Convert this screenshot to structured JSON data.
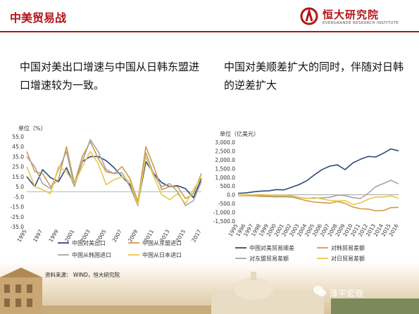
{
  "header": {
    "title": "中美贸易战"
  },
  "logo": {
    "cn": "恒大研究院",
    "en": "EVERGRANDE RESEARCH INSTITUTE"
  },
  "left_text": "中国对美出口增速与中国从日韩东盟进口增速较为一致。",
  "right_text": "中国对美顺差扩大的同时，伴随对日韩的逆差扩大",
  "source": "资料来源：  WIND，恒大研究院",
  "watermark": "泽平宏观",
  "colors": {
    "brand": "#b0151b"
  },
  "chart_data": [
    {
      "type": "line",
      "unit": "单位（%）",
      "x": [
        "1995",
        "1996",
        "1997",
        "1998",
        "1999",
        "2000",
        "2001",
        "2002",
        "2003",
        "2004",
        "2005",
        "2006",
        "2007",
        "2008",
        "2009",
        "2010",
        "2011",
        "2012",
        "2013",
        "2014",
        "2015",
        "2016",
        "2017"
      ],
      "x_tick_labels": [
        "1995",
        "1997",
        "1999",
        "2001",
        "2003",
        "2005",
        "2007",
        "2009",
        "2011",
        "2013",
        "2015",
        "2017"
      ],
      "ylim": [
        -35,
        55
      ],
      "y_ticks": [
        -35,
        -25,
        -15,
        -5,
        5,
        15,
        25,
        35,
        45,
        55
      ],
      "y_tick_labels": [
        "-35.0",
        "-25.0",
        "-15.0",
        "-5.0",
        "5.0",
        "15.0",
        "25.0",
        "35.0",
        "45.0",
        "55.0"
      ],
      "legend": "bottom",
      "series": [
        {
          "name": "中国对美出口",
          "color": "#2e4a7a",
          "values": [
            15,
            5,
            22,
            14,
            10,
            24,
            6,
            30,
            35,
            35,
            31,
            24,
            15,
            7,
            -12,
            30,
            18,
            9,
            5,
            6,
            3,
            -6,
            13
          ]
        },
        {
          "name": "中国从东盟进口",
          "color": "#d19a4a",
          "values": [
            40,
            20,
            18,
            5,
            12,
            45,
            8,
            35,
            50,
            33,
            20,
            18,
            25,
            13,
            -10,
            45,
            25,
            2,
            5,
            5,
            -7,
            -2,
            18
          ]
        },
        {
          "name": "中国从韩国进口",
          "color": "#a5a5a5",
          "values": [
            35,
            25,
            8,
            3,
            22,
            40,
            5,
            30,
            52,
            40,
            22,
            18,
            19,
            5,
            -14,
            39,
            17,
            5,
            8,
            0,
            -14,
            -9,
            10
          ]
        },
        {
          "name": "中国从日本进口",
          "color": "#e8c84a",
          "values": [
            25,
            5,
            2,
            -2,
            25,
            20,
            8,
            25,
            40,
            28,
            7,
            12,
            15,
            10,
            -13,
            35,
            15,
            -3,
            -8,
            -2,
            -12,
            2,
            14
          ]
        }
      ]
    },
    {
      "type": "line",
      "unit": "单位（亿美元）",
      "x": [
        "1995",
        "1996",
        "1997",
        "1998",
        "1999",
        "2000",
        "2001",
        "2002",
        "2003",
        "2004",
        "2005",
        "2006",
        "2007",
        "2008",
        "2009",
        "2010",
        "2011",
        "2012",
        "2013",
        "2014",
        "2015",
        "2016"
      ],
      "ylim": [
        -1500,
        3000
      ],
      "y_ticks": [
        -1500,
        -1000,
        -500,
        0,
        500,
        1000,
        1500,
        2000,
        2500,
        3000
      ],
      "y_tick_labels": [
        "-1,500.0",
        "-1,000.0",
        "-500.0",
        "0.0",
        "500.0",
        "1,000.0",
        "1,500.0",
        "2,000.0",
        "2,500.0",
        "3,000.0"
      ],
      "legend": "bottom",
      "series": [
        {
          "name": "中国对美贸易顺差",
          "color": "#2e4a7a",
          "values": [
            86,
            105,
            164,
            211,
            225,
            297,
            281,
            427,
            586,
            803,
            1142,
            1443,
            1633,
            1710,
            1433,
            1813,
            2023,
            2189,
            2158,
            2370,
            2614,
            2508
          ]
        },
        {
          "name": "对韩贸易差额",
          "color": "#d19a4a",
          "values": [
            -37,
            -50,
            -58,
            -90,
            -100,
            -120,
            -110,
            -130,
            -230,
            -344,
            -417,
            -452,
            -478,
            -382,
            -489,
            -696,
            -798,
            -812,
            -919,
            -900,
            -732,
            -712
          ]
        },
        {
          "name": "对东盟贸易差额",
          "color": "#a5a5a5",
          "values": [
            -5,
            -10,
            -20,
            -40,
            -50,
            -60,
            -50,
            -75,
            -160,
            -200,
            -200,
            -180,
            -140,
            -25,
            -40,
            -160,
            -220,
            80,
            460,
            640,
            830,
            620
          ]
        },
        {
          "name": "对日贸易差额",
          "color": "#e8c84a",
          "values": [
            -10,
            -15,
            0,
            15,
            -10,
            -30,
            -20,
            -50,
            -150,
            -210,
            -160,
            -240,
            -320,
            -350,
            -330,
            -560,
            -460,
            -260,
            -120,
            -130,
            -60,
            -200
          ]
        }
      ]
    }
  ]
}
